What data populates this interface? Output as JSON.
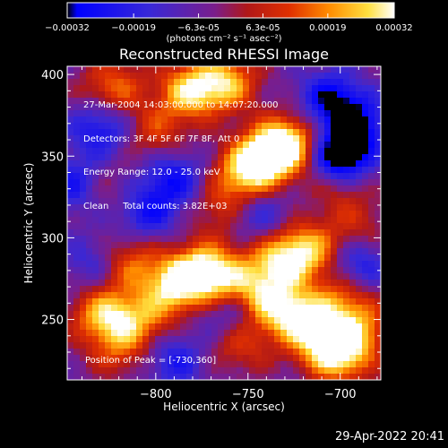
{
  "header": {
    "title": "Reconstructed RHESSI Image"
  },
  "colorbar": {
    "tick_labels": [
      "-0.00032",
      "-0.00019",
      "-6.3e-05",
      "6.3e-05",
      "0.00019",
      "0.00032"
    ],
    "units": "(photons cm⁻² s⁻¹ asec⁻²)",
    "range": [
      -0.00032,
      0.00032
    ]
  },
  "annotation": {
    "lines": [
      "27-Mar-2004 14:03:00.000 to 14:07:20.000",
      "Detectors: 3F 4F 5F 6F 7F 8F, Att 0",
      "Energy Range: 12.0 - 25.0 keV",
      "Clean     Total counts: 3.82E+03"
    ],
    "peak": "Position of Peak = [-730,360]"
  },
  "footer": {
    "timestamp": "29-Apr-2022 20:41"
  },
  "chart_data": {
    "type": "heatmap",
    "title": "Reconstructed RHESSI Image",
    "xlabel": "Heliocentric X (arcsec)",
    "ylabel": "Heliocentric Y (arcsec)",
    "xlim": [
      -848,
      -678
    ],
    "ylim": [
      213,
      405
    ],
    "xticks": [
      -800,
      -750,
      -700
    ],
    "yticks": [
      250,
      300,
      350,
      400
    ],
    "colormap": "blue-purple-red-orange-yellow-white",
    "clim": [
      -0.00032,
      0.00032
    ],
    "peak_position": [
      -730,
      360
    ],
    "grid": false,
    "blobs": [
      {
        "x": -740,
        "y": 350,
        "amp": 1.0
      },
      {
        "x": -727,
        "y": 358,
        "amp": 0.9
      },
      {
        "x": -752,
        "y": 338,
        "amp": 0.75
      },
      {
        "x": -782,
        "y": 390,
        "amp": 0.85
      },
      {
        "x": -762,
        "y": 395,
        "amp": 0.8
      },
      {
        "x": -823,
        "y": 392,
        "amp": 0.6
      },
      {
        "x": -800,
        "y": 365,
        "amp": 0.45
      },
      {
        "x": -775,
        "y": 280,
        "amp": 0.95
      },
      {
        "x": -790,
        "y": 270,
        "amp": 0.85
      },
      {
        "x": -815,
        "y": 285,
        "amp": 0.6
      },
      {
        "x": -828,
        "y": 253,
        "amp": 0.8
      },
      {
        "x": -808,
        "y": 250,
        "amp": 0.55
      },
      {
        "x": -820,
        "y": 232,
        "amp": 0.45
      },
      {
        "x": -760,
        "y": 272,
        "amp": 0.6
      },
      {
        "x": -735,
        "y": 285,
        "amp": 0.7
      },
      {
        "x": -718,
        "y": 292,
        "amp": 0.85
      },
      {
        "x": -740,
        "y": 262,
        "amp": 0.7
      },
      {
        "x": -725,
        "y": 252,
        "amp": 0.75
      },
      {
        "x": -700,
        "y": 228,
        "amp": 0.9
      },
      {
        "x": -710,
        "y": 240,
        "amp": 0.75
      },
      {
        "x": -688,
        "y": 245,
        "amp": 0.5
      },
      {
        "x": -755,
        "y": 235,
        "amp": 0.45
      },
      {
        "x": -700,
        "y": 262,
        "amp": 0.5
      },
      {
        "x": -690,
        "y": 305,
        "amp": 0.35
      },
      {
        "x": -765,
        "y": 318,
        "amp": 0.4
      },
      {
        "x": -830,
        "y": 330,
        "amp": 0.35
      },
      {
        "x": -700,
        "y": 330,
        "amp": 0.35
      }
    ],
    "dips": [
      {
        "x": -700,
        "y": 350,
        "amp": -1.1
      },
      {
        "x": -705,
        "y": 385,
        "amp": -0.7
      },
      {
        "x": -843,
        "y": 332,
        "amp": -0.65
      },
      {
        "x": -830,
        "y": 367,
        "amp": -0.6
      },
      {
        "x": -805,
        "y": 315,
        "amp": -0.55
      },
      {
        "x": -790,
        "y": 336,
        "amp": -0.6
      },
      {
        "x": -745,
        "y": 315,
        "amp": -0.45
      },
      {
        "x": -690,
        "y": 285,
        "amp": -0.55
      },
      {
        "x": -690,
        "y": 370,
        "amp": -0.6
      },
      {
        "x": -760,
        "y": 255,
        "amp": -0.5
      },
      {
        "x": -833,
        "y": 285,
        "amp": -0.4
      },
      {
        "x": -790,
        "y": 225,
        "amp": -0.5
      }
    ]
  }
}
